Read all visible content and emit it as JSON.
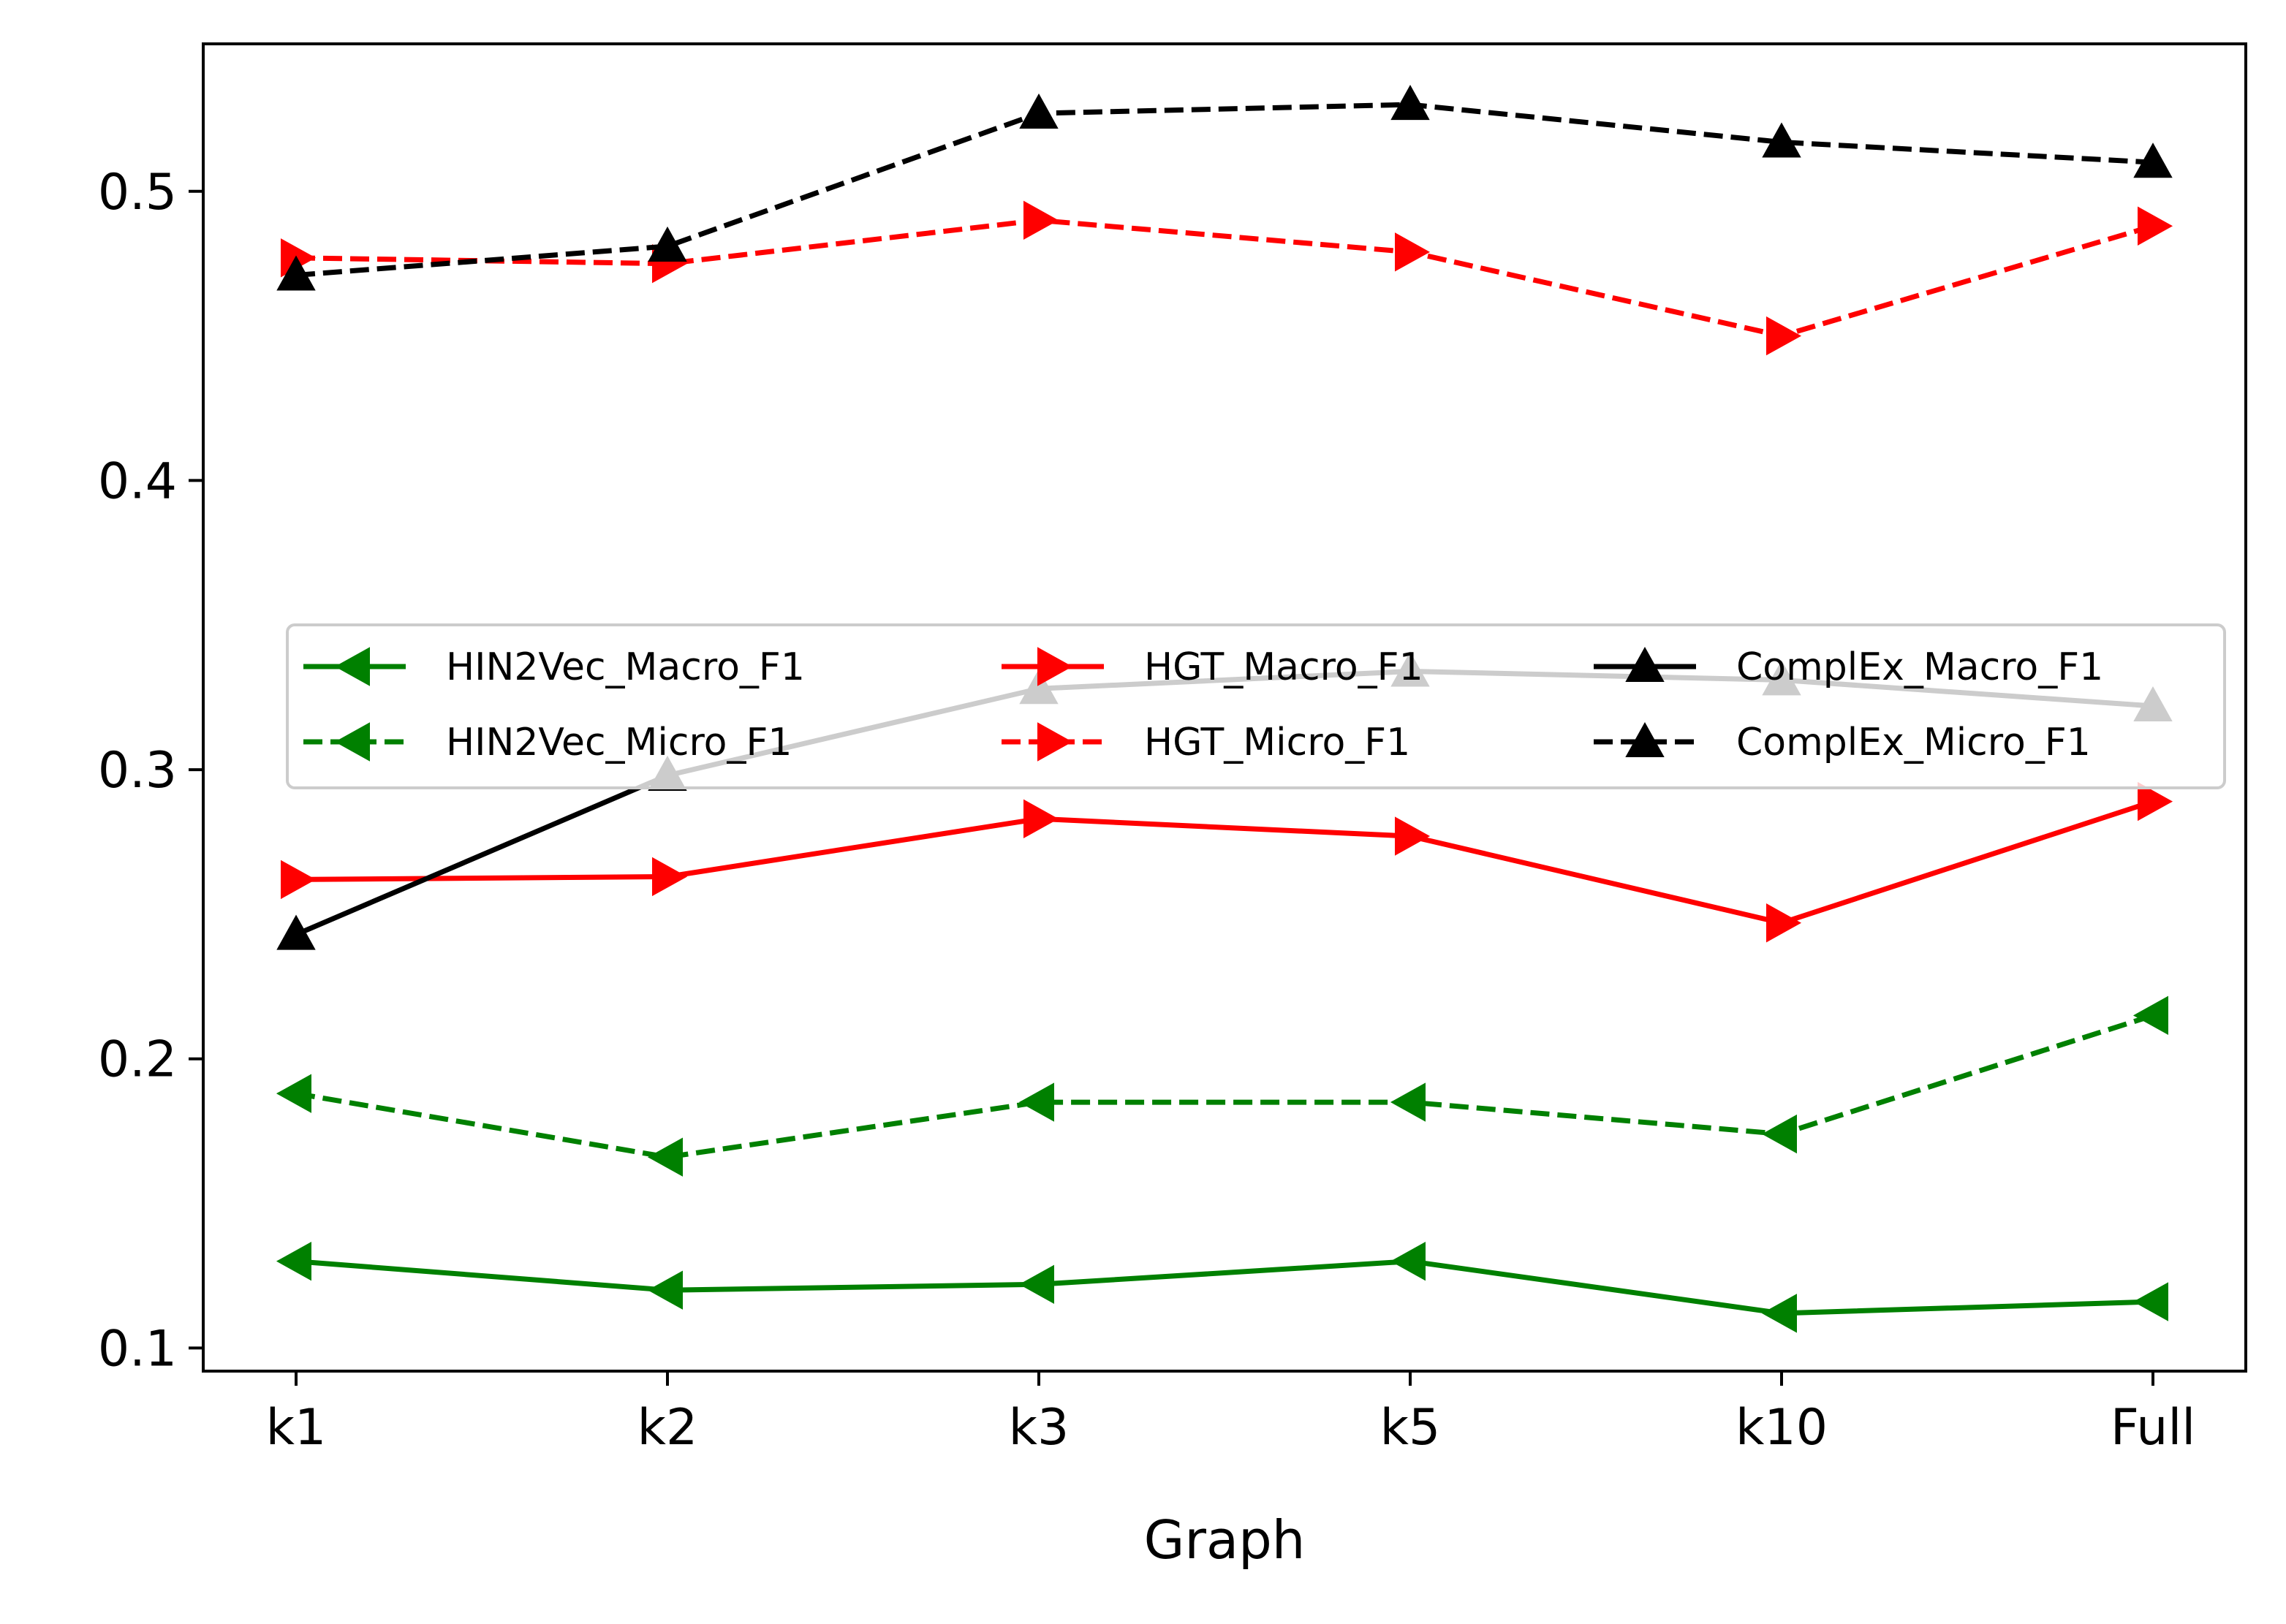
{
  "chart_data": {
    "type": "line",
    "title": "",
    "xlabel": "Graph",
    "ylabel": "",
    "categories": [
      "k1",
      "k2",
      "k3",
      "k5",
      "k10",
      "Full"
    ],
    "ylim": [
      0.092,
      0.551
    ],
    "yticks": [
      0.1,
      0.2,
      0.3,
      0.4,
      0.5
    ],
    "ytick_labels": [
      "0.1",
      "0.2",
      "0.3",
      "0.4",
      "0.5"
    ],
    "grid": false,
    "legend_position": "center",
    "legend_columns": 3,
    "series": [
      {
        "name": "HIN2Vec_Macro_F1",
        "color": "#008000",
        "linestyle": "solid",
        "marker": "triangle-left",
        "values": [
          0.13,
          0.12,
          0.122,
          0.13,
          0.112,
          0.116
        ]
      },
      {
        "name": "HIN2Vec_Micro_F1",
        "color": "#008000",
        "linestyle": "dashed",
        "marker": "triangle-left",
        "values": [
          0.188,
          0.166,
          0.185,
          0.185,
          0.174,
          0.215
        ]
      },
      {
        "name": "HGT_Macro_F1",
        "color": "#ff0000",
        "linestyle": "solid",
        "marker": "triangle-right",
        "values": [
          0.262,
          0.263,
          0.283,
          0.277,
          0.247,
          0.289
        ]
      },
      {
        "name": "HGT_Micro_F1",
        "color": "#ff0000",
        "linestyle": "dashed",
        "marker": "triangle-right",
        "values": [
          0.477,
          0.475,
          0.49,
          0.479,
          0.45,
          0.488
        ]
      },
      {
        "name": "ComplEx_Macro_F1",
        "color": "#000000",
        "linestyle": "solid",
        "marker": "triangle-up",
        "values": [
          0.243,
          0.298,
          0.328,
          0.334,
          0.331,
          0.322
        ]
      },
      {
        "name": "ComplEx_Micro_F1",
        "color": "#000000",
        "linestyle": "dashed",
        "marker": "triangle-up",
        "values": [
          0.471,
          0.481,
          0.527,
          0.53,
          0.517,
          0.51
        ]
      }
    ]
  }
}
